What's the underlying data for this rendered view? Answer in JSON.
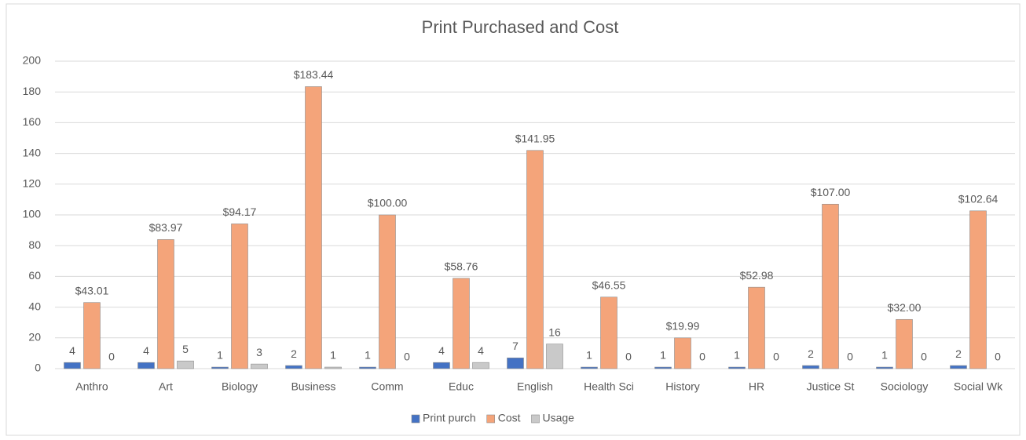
{
  "chart_data": {
    "type": "bar",
    "title": "Print Purchased and Cost",
    "categories": [
      "Anthro",
      "Art",
      "Biology",
      "Business",
      "Comm",
      "Educ",
      "English",
      "Health Sci",
      "History",
      "HR",
      "Justice St",
      "Sociology",
      "Social Wk"
    ],
    "series": [
      {
        "name": "Print purch",
        "color": "#4472c4",
        "values": [
          4,
          4,
          1,
          2,
          1,
          4,
          7,
          1,
          1,
          1,
          2,
          1,
          2
        ]
      },
      {
        "name": "Cost",
        "color": "#f4a47a",
        "values": [
          43.01,
          83.97,
          94.17,
          183.44,
          100.0,
          58.76,
          141.95,
          46.55,
          19.99,
          52.98,
          107.0,
          32.0,
          102.64
        ],
        "value_labels": [
          "$43.01",
          "$83.97",
          "$94.17",
          "$183.44",
          "$100.00",
          "$58.76",
          "$141.95",
          "$46.55",
          "$19.99",
          "$52.98",
          "$107.00",
          "$32.00",
          "$102.64"
        ]
      },
      {
        "name": "Usage",
        "color": "#c9c9c9",
        "values": [
          0,
          5,
          3,
          1,
          0,
          4,
          16,
          0,
          0,
          0,
          0,
          0,
          0
        ]
      }
    ],
    "ylim": [
      0,
      200
    ],
    "yticks": [
      0,
      20,
      40,
      60,
      80,
      100,
      120,
      140,
      160,
      180,
      200
    ],
    "grid": true,
    "legend": "bottom"
  }
}
